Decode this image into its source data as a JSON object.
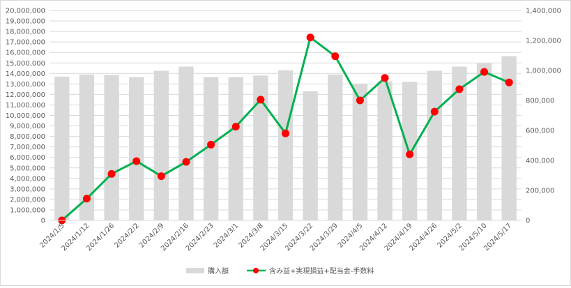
{
  "chart_data": {
    "type": "bar",
    "categories": [
      "2024/1/5",
      "2024/1/12",
      "2024/1/26",
      "2024/2/2",
      "2024/2/9",
      "2024/2/16",
      "2024/2/23",
      "2024/3/1",
      "2024/3/8",
      "2024/3/15",
      "2024/3/22",
      "2024/3/29",
      "2024/4/5",
      "2024/4/12",
      "2024/4/19",
      "2024/4/26",
      "2024/5/2",
      "2024/5/10",
      "2024/5/17"
    ],
    "series": [
      {
        "name": "購入額",
        "type": "bar",
        "axis": "left",
        "color": "#d9d9d9",
        "values": [
          13700000,
          13900000,
          13850000,
          13650000,
          14250000,
          14650000,
          13650000,
          13650000,
          13800000,
          14300000,
          12300000,
          13900000,
          13000000,
          13250000,
          13200000,
          14250000,
          14650000,
          14950000,
          15650000
        ]
      },
      {
        "name": "含み益+実現損益+配当金-手数料",
        "type": "line",
        "axis": "right",
        "color": "#00b050",
        "marker_color": "#ff0000",
        "values": [
          0,
          145000,
          310000,
          395000,
          295000,
          390000,
          505000,
          625000,
          805000,
          580000,
          1220000,
          1095000,
          800000,
          950000,
          440000,
          725000,
          875000,
          990000,
          920000
        ]
      }
    ],
    "y_left": {
      "min": 0,
      "max": 20000000,
      "step": 1000000,
      "tick_labels": [
        "0",
        "1,000,000",
        "2,000,000",
        "3,000,000",
        "4,000,000",
        "5,000,000",
        "6,000,000",
        "7,000,000",
        "8,000,000",
        "9,000,000",
        "10,000,000",
        "11,000,000",
        "12,000,000",
        "13,000,000",
        "14,000,000",
        "15,000,000",
        "16,000,000",
        "17,000,000",
        "18,000,000",
        "19,000,000",
        "20,000,000"
      ]
    },
    "y_right": {
      "min": 0,
      "max": 1400000,
      "step": 200000,
      "tick_labels": [
        "0",
        "200,000",
        "400,000",
        "600,000",
        "800,000",
        "1,000,000",
        "1,200,000",
        "1,400,000"
      ]
    },
    "grid": true,
    "legend_position": "bottom",
    "title": "",
    "xlabel": "",
    "ylabel": ""
  }
}
